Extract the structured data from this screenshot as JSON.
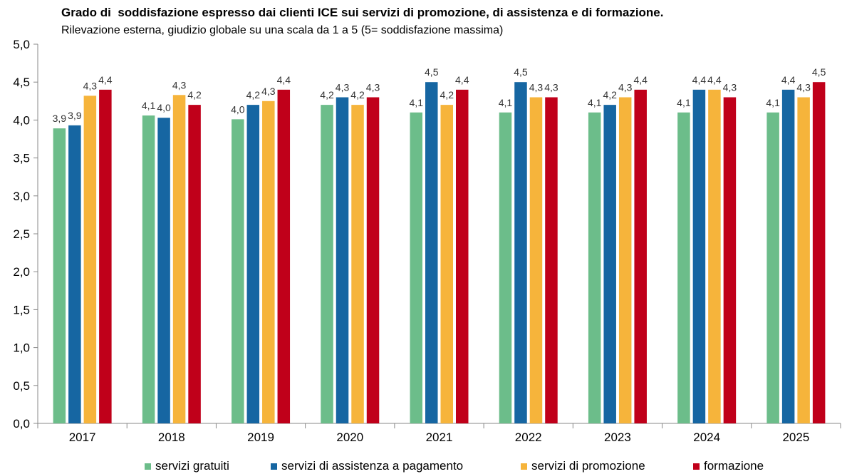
{
  "chart_data": {
    "type": "bar",
    "title": "Grado di  soddisfazione espresso dai clienti ICE sui servizi di promozione, di assistenza e di formazione.",
    "subtitle": "Rilevazione esterna, giudizio globale su una scala da 1 a 5 (5= soddisfazione massima)",
    "xlabel": "",
    "ylabel": "",
    "ylim": [
      0,
      5
    ],
    "yticks": [
      "0,0",
      "0,5",
      "1,0",
      "1,5",
      "2,0",
      "2,5",
      "3,0",
      "3,5",
      "4,0",
      "4,5",
      "5,0"
    ],
    "categories": [
      "2017",
      "2018",
      "2019",
      "2020",
      "2021",
      "2022",
      "2023",
      "2024",
      "2025"
    ],
    "legend_position": "bottom",
    "grid": false,
    "series": [
      {
        "name": "servizi gratuiti",
        "color": "#6cbd8a",
        "values": [
          3.89,
          4.06,
          4.01,
          4.2,
          4.1,
          4.1,
          4.1,
          4.1,
          4.1
        ],
        "labels": [
          "3,9",
          "4,1",
          "4,0",
          "4,2",
          "4,1",
          "4,1",
          "4,1",
          "4,1",
          "4,1"
        ]
      },
      {
        "name": "servizi di assistenza a pagamento",
        "color": "#1666a2",
        "values": [
          3.93,
          4.03,
          4.2,
          4.3,
          4.5,
          4.5,
          4.2,
          4.4,
          4.4
        ],
        "labels": [
          "3,9",
          "4,0",
          "4,2",
          "4,3",
          "4,5",
          "4,5",
          "4,2",
          "4,4",
          "4,4"
        ]
      },
      {
        "name": "servizi di promozione",
        "color": "#f6b43b",
        "values": [
          4.32,
          4.33,
          4.25,
          4.2,
          4.2,
          4.3,
          4.3,
          4.4,
          4.3
        ],
        "labels": [
          "4,3",
          "4,3",
          "4,3",
          "4,2",
          "4,2",
          "4,3",
          "4,3",
          "4,4",
          "4,3"
        ]
      },
      {
        "name": "formazione",
        "color": "#c0001a",
        "values": [
          4.4,
          4.2,
          4.4,
          4.3,
          4.4,
          4.3,
          4.4,
          4.3,
          4.5
        ],
        "labels": [
          "4,4",
          "4,2",
          "4,4",
          "4,3",
          "4,4",
          "4,3",
          "4,4",
          "4,3",
          "4,5"
        ]
      }
    ]
  }
}
